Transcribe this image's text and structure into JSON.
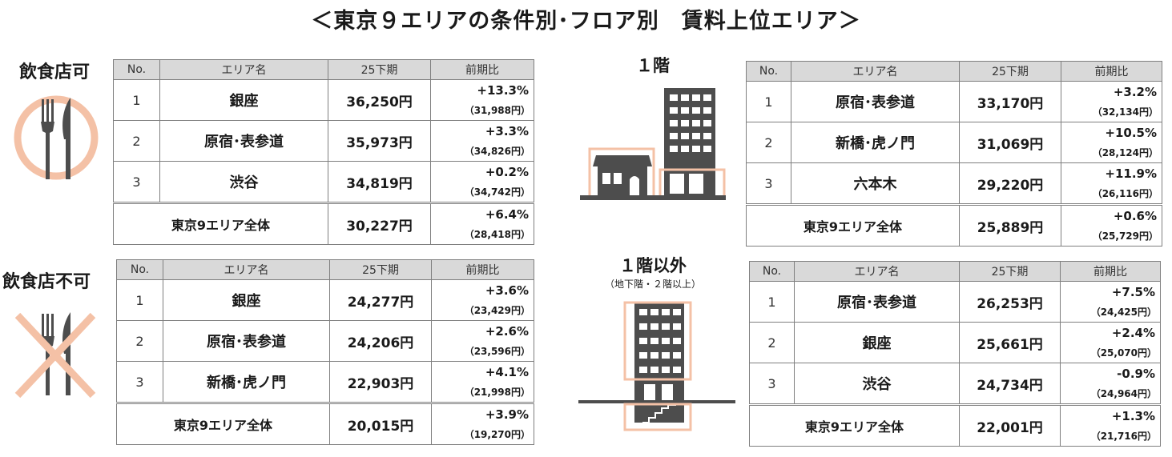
{
  "title": "＜東京９エリアの条件別･フロア別　賃料上位エリア＞",
  "sections": {
    "restaurant_ok": "飲食店可",
    "restaurant_ng": "飲食店不可",
    "floor1": "１階",
    "floor_other": "１階以外",
    "floor_other_sub": "（地下階・２階以上）"
  },
  "headers": {
    "no": "No.",
    "area": "エリア名",
    "period": "25下期",
    "ratio": "前期比"
  },
  "tables": {
    "t1": {
      "rows": [
        {
          "no": "1",
          "area": "銀座",
          "rent": "36,250円",
          "pct": "+13.3%",
          "prev": "（31,988円）"
        },
        {
          "no": "2",
          "area": "原宿･表参道",
          "rent": "35,973円",
          "pct": "+3.3%",
          "prev": "（34,826円）"
        },
        {
          "no": "3",
          "area": "渋谷",
          "rent": "34,819円",
          "pct": "+0.2%",
          "prev": "（34,742円）"
        }
      ],
      "total": {
        "label": "東京9エリア全体",
        "rent": "30,227円",
        "pct": "+6.4%",
        "prev": "（28,418円）"
      }
    },
    "t2": {
      "rows": [
        {
          "no": "1",
          "area": "銀座",
          "rent": "24,277円",
          "pct": "+3.6%",
          "prev": "（23,429円）"
        },
        {
          "no": "2",
          "area": "原宿･表参道",
          "rent": "24,206円",
          "pct": "+2.6%",
          "prev": "（23,596円）"
        },
        {
          "no": "3",
          "area": "新橋･虎ノ門",
          "rent": "22,903円",
          "pct": "+4.1%",
          "prev": "（21,998円）"
        }
      ],
      "total": {
        "label": "東京9エリア全体",
        "rent": "20,015円",
        "pct": "+3.9%",
        "prev": "（19,270円）"
      }
    },
    "t3": {
      "rows": [
        {
          "no": "1",
          "area": "原宿･表参道",
          "rent": "33,170円",
          "pct": "+3.2%",
          "prev": "（32,134円）"
        },
        {
          "no": "2",
          "area": "新橋･虎ノ門",
          "rent": "31,069円",
          "pct": "+10.5%",
          "prev": "（28,124円）"
        },
        {
          "no": "3",
          "area": "六本木",
          "rent": "29,220円",
          "pct": "+11.9%",
          "prev": "（26,116円）"
        }
      ],
      "total": {
        "label": "東京9エリア全体",
        "rent": "25,889円",
        "pct": "+0.6%",
        "prev": "（25,729円）"
      }
    },
    "t4": {
      "rows": [
        {
          "no": "1",
          "area": "原宿･表参道",
          "rent": "26,253円",
          "pct": "+7.5%",
          "prev": "（24,425円）"
        },
        {
          "no": "2",
          "area": "銀座",
          "rent": "25,661円",
          "pct": "+2.4%",
          "prev": "（25,070円）"
        },
        {
          "no": "3",
          "area": "渋谷",
          "rent": "24,734円",
          "pct": "-0.9%",
          "prev": "（24,964円）"
        }
      ],
      "total": {
        "label": "東京9エリア全体",
        "rent": "22,001円",
        "pct": "+1.3%",
        "prev": "（21,716円）"
      }
    }
  },
  "icons": {
    "cutlery": "fork-knife-icon",
    "cutlery_crossed": "fork-knife-crossed-icon",
    "building_ground": "building-ground-floor-icon",
    "building_upper": "building-upper-floor-icon"
  },
  "colors": {
    "accent": "#f4c1a6",
    "icon_dark": "#4d4d4d",
    "header_bg": "#d9d9d9",
    "border": "#7f7f7f"
  }
}
